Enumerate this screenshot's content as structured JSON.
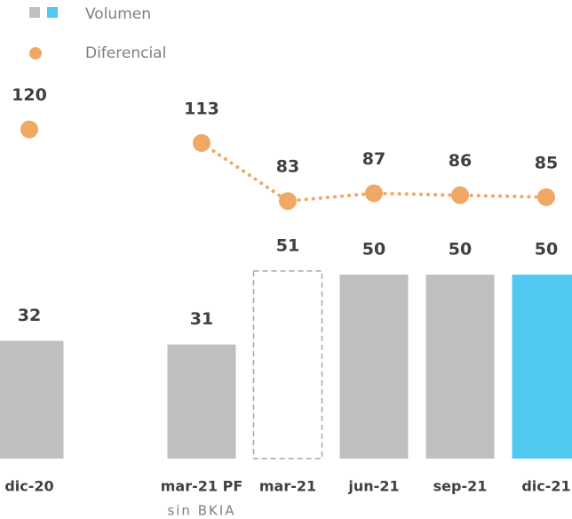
{
  "chart_data": {
    "type": "bar",
    "categories": [
      "dic-20",
      null,
      "mar-21 PF",
      "mar-21",
      "jun-21",
      "sep-21",
      "dic-21"
    ],
    "annotation": "sin BKIA",
    "series": [
      {
        "name": "Volumen",
        "type": "bar",
        "color": "#bfbfbf",
        "highlight_color": "#4fc9f0",
        "colors": [
          "#bfbfbf",
          null,
          "#bfbfbf",
          "none",
          "#bfbfbf",
          "#bfbfbf",
          "#4fc9f0"
        ],
        "values": [
          32,
          null,
          31,
          51,
          50,
          50,
          50
        ]
      },
      {
        "name": "Diferencial",
        "type": "line",
        "axis": "y2",
        "color": "#f0a865",
        "values": [
          120,
          null,
          113,
          83,
          87,
          86,
          85
        ]
      }
    ],
    "ylim": [
      0,
      100
    ],
    "y2lim": [
      -50,
      140
    ],
    "legend": "top-left"
  }
}
